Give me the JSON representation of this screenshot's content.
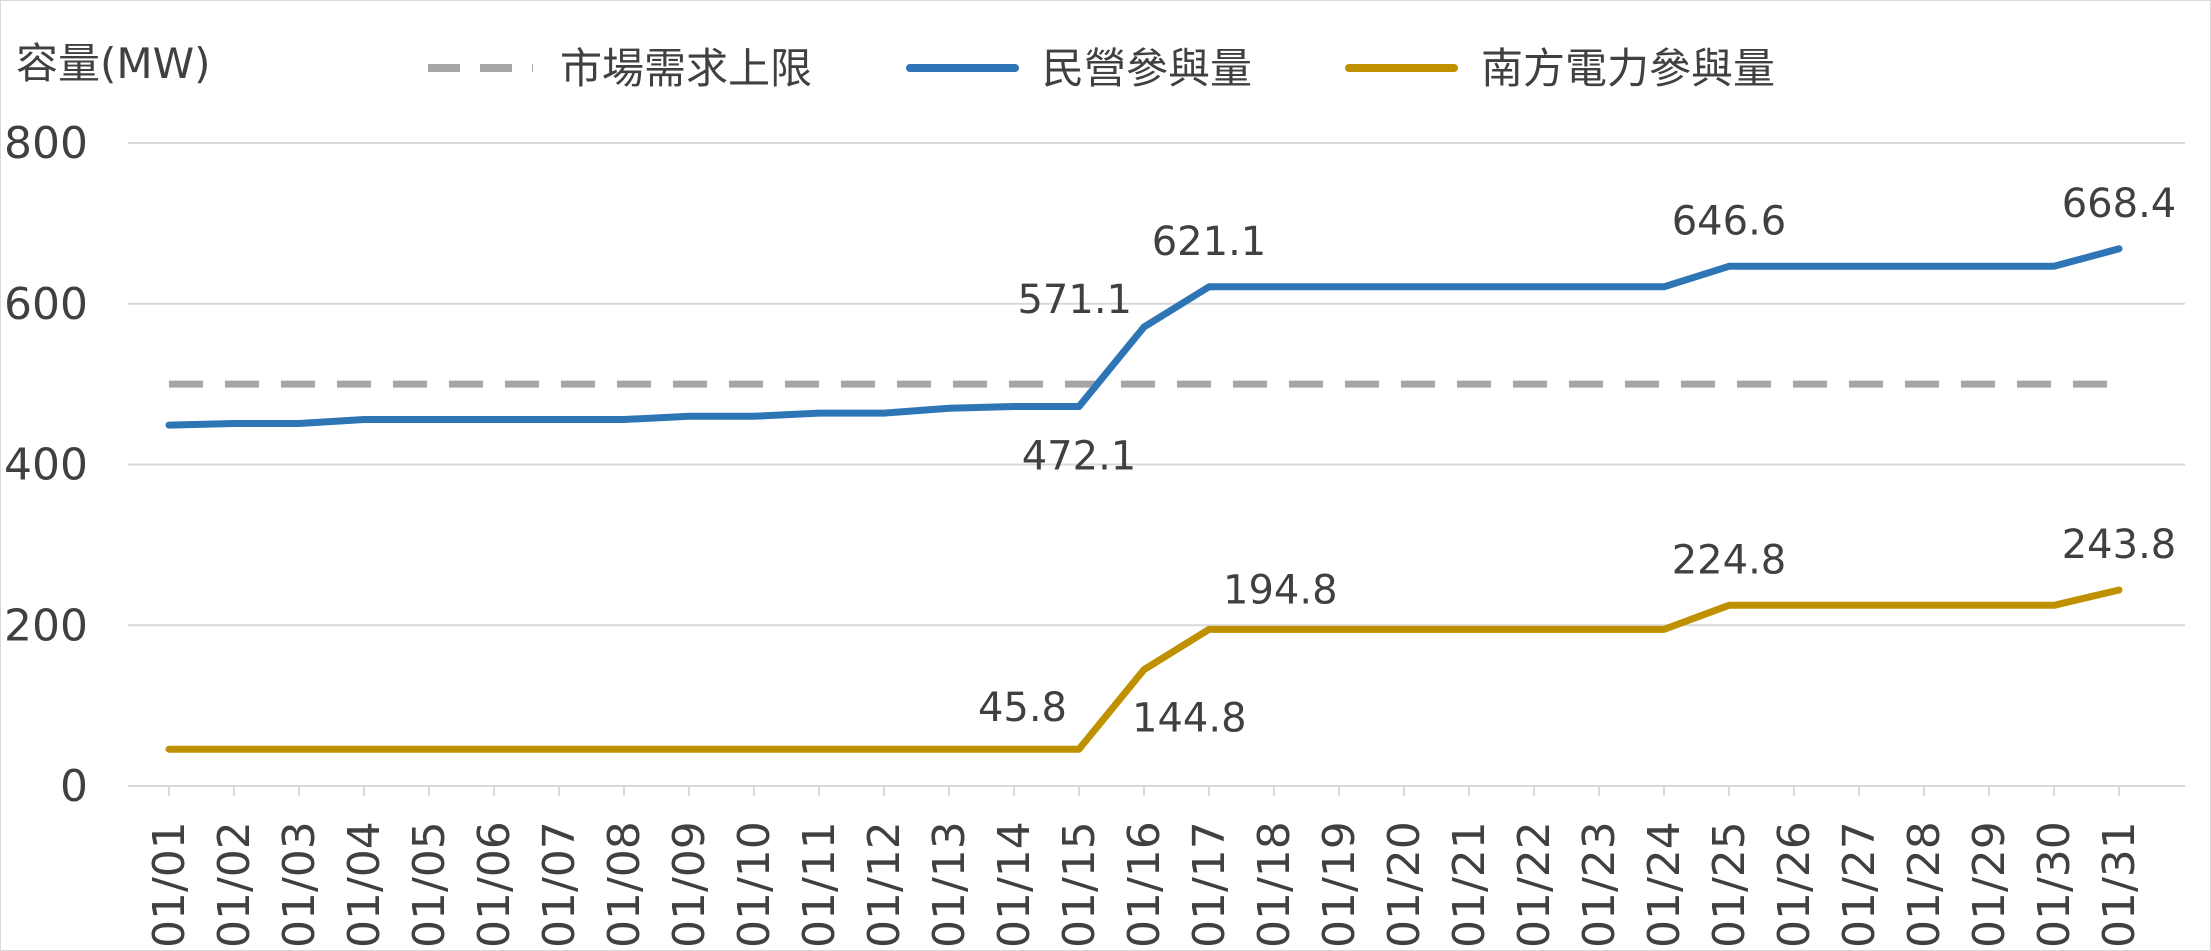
{
  "chart_data": {
    "type": "line",
    "ylabel": "容量(MW)",
    "ylim": [
      0,
      800
    ],
    "yticks": [
      0,
      200,
      400,
      600,
      800
    ],
    "grid": true,
    "legend_position": "top",
    "categories": [
      "01/01",
      "01/02",
      "01/03",
      "01/04",
      "01/05",
      "01/06",
      "01/07",
      "01/08",
      "01/09",
      "01/10",
      "01/11",
      "01/12",
      "01/13",
      "01/14",
      "01/15",
      "01/16",
      "01/17",
      "01/18",
      "01/19",
      "01/20",
      "01/21",
      "01/22",
      "01/23",
      "01/24",
      "01/25",
      "01/26",
      "01/27",
      "01/28",
      "01/29",
      "01/30",
      "01/31"
    ],
    "series": [
      {
        "name": "市場需求上限",
        "color": "#a6a6a6",
        "style": "dashed",
        "values": [
          500,
          500,
          500,
          500,
          500,
          500,
          500,
          500,
          500,
          500,
          500,
          500,
          500,
          500,
          500,
          500,
          500,
          500,
          500,
          500,
          500,
          500,
          500,
          500,
          500,
          500,
          500,
          500,
          500,
          500,
          500
        ],
        "labels": []
      },
      {
        "name": "民營參與量",
        "color": "#2e75b6",
        "style": "solid",
        "values": [
          449,
          451,
          451,
          456,
          456,
          456,
          456,
          456,
          460,
          460,
          464,
          464,
          470,
          472.1,
          472.1,
          571.1,
          621.1,
          621.1,
          621.1,
          621.1,
          621.1,
          621.1,
          621.1,
          621.1,
          646.6,
          646.6,
          646.6,
          646.6,
          646.6,
          646.6,
          668.4
        ],
        "labels": [
          {
            "index": 14,
            "text": "472.1",
            "pos": "below"
          },
          {
            "index": 15,
            "text": "571.1",
            "pos": "left"
          },
          {
            "index": 16,
            "text": "621.1",
            "pos": "above"
          },
          {
            "index": 24,
            "text": "646.6",
            "pos": "above"
          },
          {
            "index": 30,
            "text": "668.4",
            "pos": "above"
          }
        ]
      },
      {
        "name": "南方電力參與量",
        "color": "#bf9000",
        "style": "solid",
        "values": [
          45.8,
          45.8,
          45.8,
          45.8,
          45.8,
          45.8,
          45.8,
          45.8,
          45.8,
          45.8,
          45.8,
          45.8,
          45.8,
          45.8,
          45.8,
          144.8,
          194.8,
          194.8,
          194.8,
          194.8,
          194.8,
          194.8,
          194.8,
          194.8,
          224.8,
          224.8,
          224.8,
          224.8,
          224.8,
          224.8,
          243.8
        ],
        "labels": [
          {
            "index": 14,
            "text": "45.8",
            "pos": "above-left"
          },
          {
            "index": 15,
            "text": "144.8",
            "pos": "below-right"
          },
          {
            "index": 16,
            "text": "194.8",
            "pos": "above-right"
          },
          {
            "index": 24,
            "text": "224.8",
            "pos": "above"
          },
          {
            "index": 30,
            "text": "243.8",
            "pos": "above"
          }
        ]
      }
    ]
  }
}
